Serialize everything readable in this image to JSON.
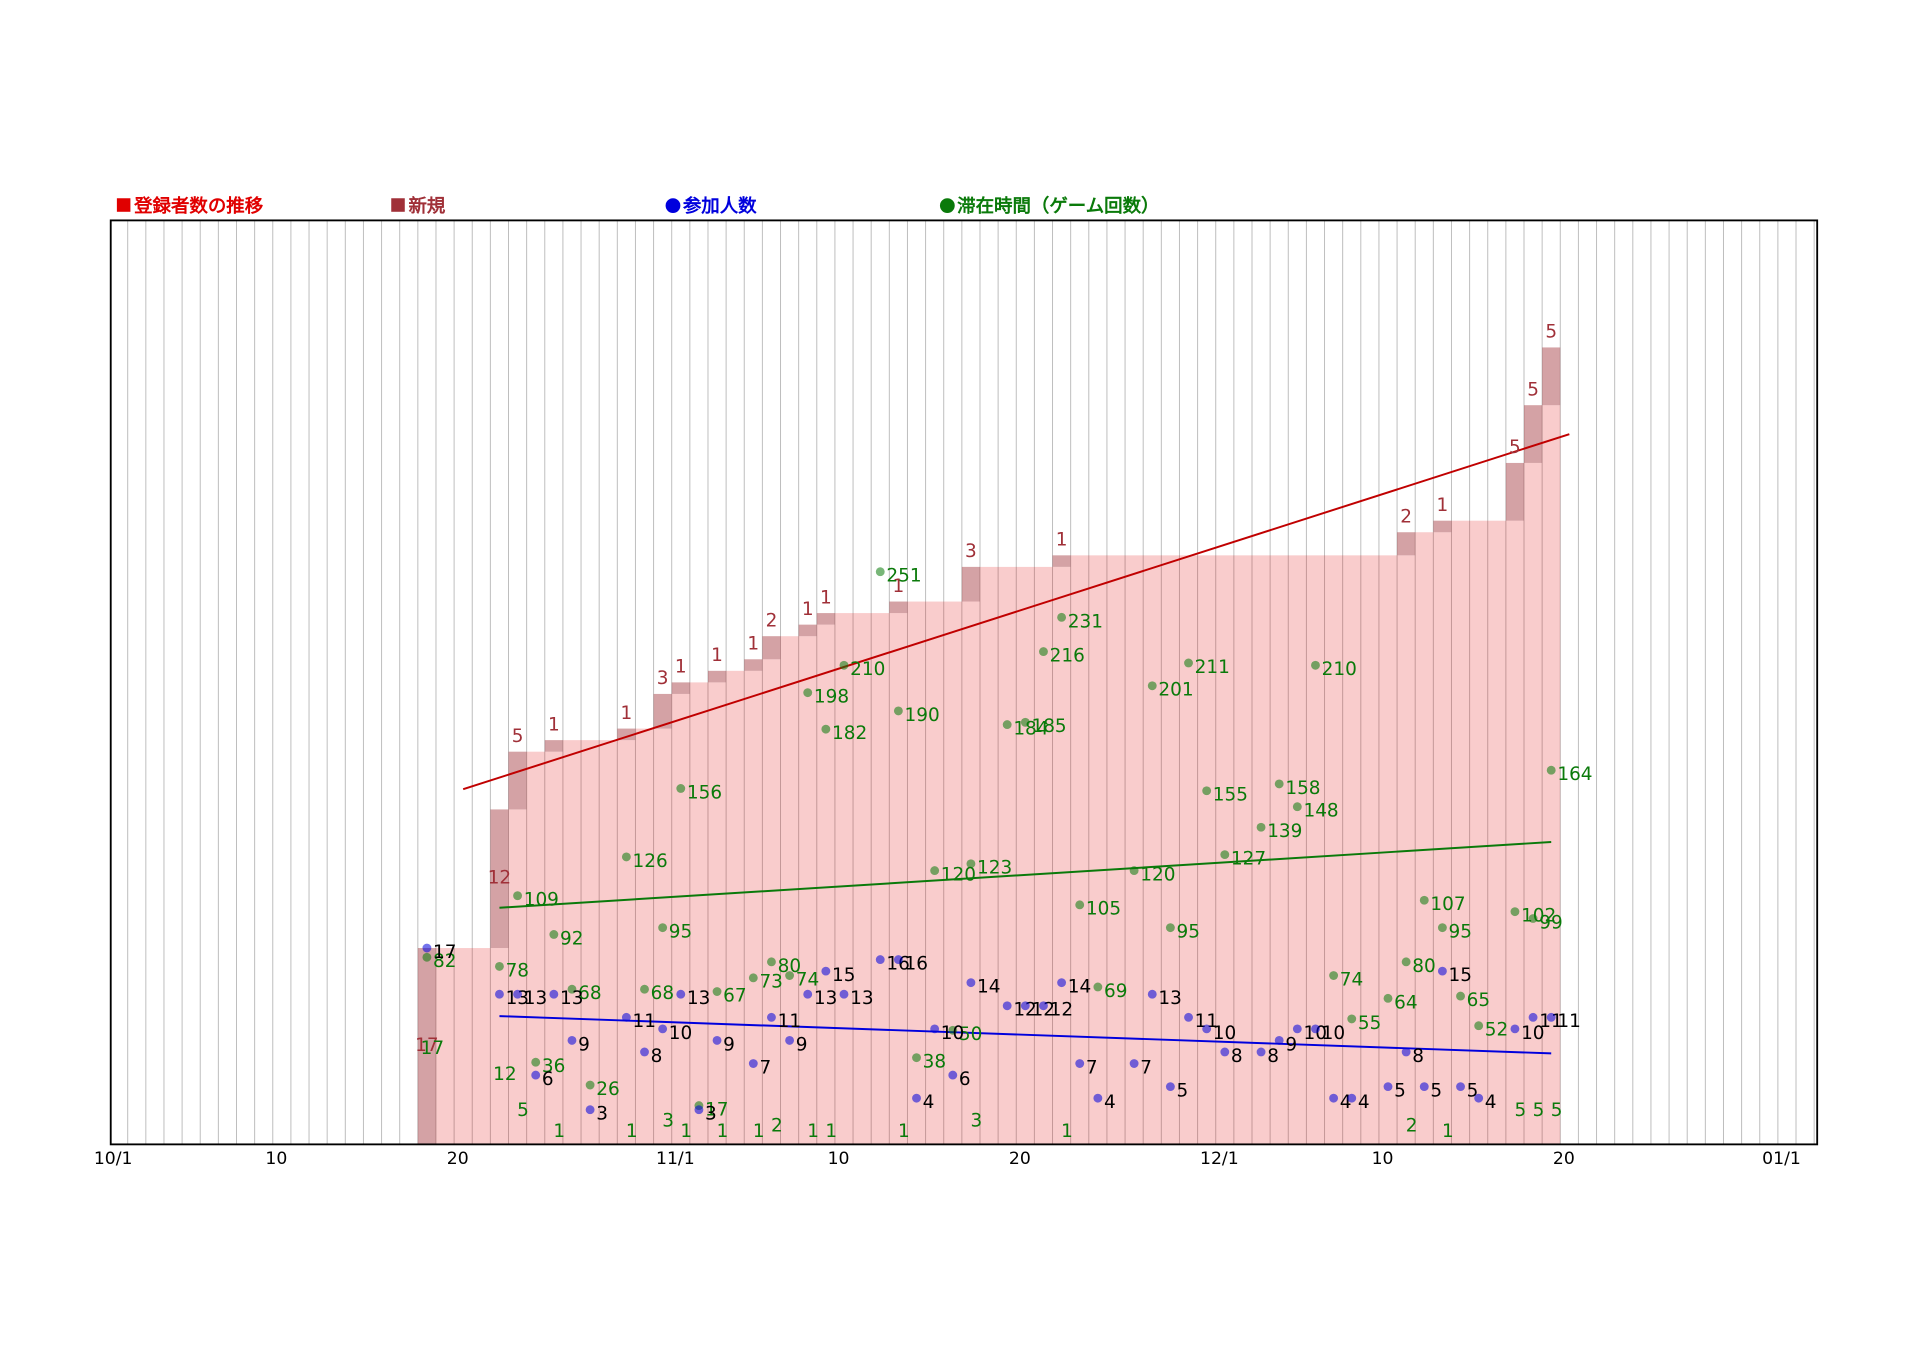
{
  "chart_data": {
    "type": "bar",
    "categories": [
      "10/1",
      null,
      null,
      null,
      null,
      null,
      null,
      null,
      null,
      "10",
      null,
      null,
      null,
      null,
      null,
      null,
      null,
      null,
      null,
      "20",
      null,
      null,
      null,
      null,
      null,
      null,
      null,
      null,
      null,
      null,
      null,
      "11/1",
      null,
      null,
      null,
      null,
      null,
      null,
      null,
      null,
      "10",
      null,
      null,
      null,
      null,
      null,
      null,
      null,
      null,
      null,
      "20",
      null,
      null,
      null,
      null,
      null,
      null,
      null,
      null,
      null,
      null,
      "12/1",
      null,
      null,
      null,
      null,
      null,
      null,
      null,
      null,
      "10",
      null,
      null,
      null,
      null,
      null,
      null,
      null,
      null,
      null,
      "20",
      null,
      null,
      null,
      null,
      null,
      null,
      null,
      null,
      null,
      null,
      null,
      "01/1"
    ],
    "ylim": [
      0,
      80
    ],
    "y2lim": [
      0,
      405
    ],
    "grid": true,
    "series": [
      {
        "name": "登録者数の推移",
        "color": "#e00000"
      },
      {
        "name": "新規",
        "color": "#a03038",
        "values": [
          null,
          null,
          null,
          null,
          null,
          null,
          null,
          null,
          null,
          null,
          null,
          null,
          null,
          null,
          null,
          null,
          null,
          17,
          null,
          null,
          null,
          12,
          5,
          null,
          1,
          null,
          null,
          null,
          1,
          null,
          3,
          1,
          null,
          1,
          null,
          1,
          2,
          null,
          1,
          1,
          null,
          null,
          null,
          1,
          null,
          null,
          null,
          3,
          null,
          null,
          null,
          null,
          1,
          null,
          null,
          null,
          null,
          null,
          null,
          null,
          null,
          null,
          null,
          null,
          null,
          null,
          null,
          null,
          null,
          null,
          null,
          2,
          null,
          1,
          null,
          null,
          null,
          5,
          5,
          5,
          null,
          null,
          null,
          null,
          null,
          null,
          null,
          null,
          null,
          null,
          null,
          null,
          null
        ]
      },
      {
        "name": "参加人数",
        "color": "#0000dd",
        "values": [
          null,
          null,
          null,
          null,
          null,
          null,
          null,
          null,
          null,
          null,
          null,
          null,
          null,
          null,
          null,
          null,
          null,
          17,
          null,
          null,
          null,
          13,
          13,
          6,
          13,
          9,
          3,
          null,
          11,
          8,
          10,
          13,
          3,
          9,
          null,
          7,
          11,
          9,
          13,
          15,
          13,
          null,
          16,
          16,
          4,
          10,
          6,
          14,
          null,
          12,
          12,
          12,
          14,
          7,
          4,
          null,
          7,
          13,
          5,
          11,
          10,
          8,
          null,
          8,
          9,
          10,
          10,
          4,
          4,
          null,
          5,
          8,
          5,
          15,
          5,
          4,
          null,
          10,
          11,
          11,
          null,
          null,
          null,
          null,
          null,
          null,
          null,
          null,
          null,
          null,
          null,
          null,
          null
        ]
      },
      {
        "name": "滞在時間（ゲーム回数）",
        "color": "#0a7a0a",
        "axis": "y2",
        "values": [
          null,
          null,
          null,
          null,
          null,
          null,
          null,
          null,
          null,
          null,
          null,
          null,
          null,
          null,
          null,
          null,
          null,
          82,
          null,
          null,
          null,
          78,
          109,
          36,
          92,
          68,
          26,
          null,
          126,
          68,
          95,
          156,
          17,
          67,
          null,
          73,
          80,
          74,
          198,
          182,
          210,
          null,
          251,
          190,
          38,
          120,
          50,
          123,
          null,
          184,
          185,
          216,
          231,
          105,
          69,
          null,
          120,
          201,
          95,
          211,
          155,
          127,
          null,
          139,
          158,
          148,
          210,
          74,
          55,
          null,
          64,
          80,
          107,
          95,
          65,
          52,
          null,
          102,
          99,
          164,
          null,
          null,
          null,
          null,
          null,
          null,
          null,
          null,
          null,
          null,
          null,
          null,
          null
        ]
      }
    ]
  }
}
